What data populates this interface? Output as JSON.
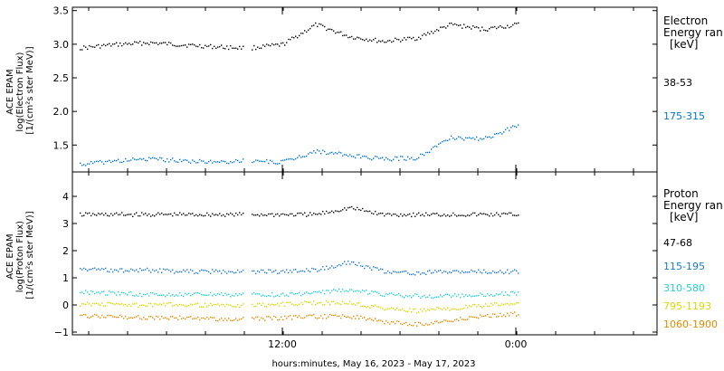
{
  "chart_data": [
    {
      "type": "scatter",
      "panel": "electron",
      "ylabel_lines": [
        "ACE EPAM",
        "log(Electron Flux)",
        "[1/(cm²s ster MeV)]"
      ],
      "ylim": [
        1.1,
        3.55
      ],
      "yticks": [
        1.5,
        2.0,
        2.5,
        3.0,
        3.5
      ],
      "ytick_labels": [
        "1.5",
        "2.0",
        "2.5",
        "3.0",
        "3.5"
      ],
      "legend_title_lines": [
        "Electron",
        "Energy ran",
        "[keV]"
      ],
      "series": [
        {
          "name": "38-53",
          "color": "#000000",
          "values": [
            2.95,
            3.0,
            3.03,
            3.0,
            2.97,
            2.95,
            3.0,
            3.3,
            3.12,
            3.05,
            3.1,
            3.3,
            3.23,
            3.3
          ]
        },
        {
          "name": "175-315",
          "color": "#0077cc",
          "values": [
            1.22,
            1.27,
            1.3,
            1.28,
            1.25,
            1.28,
            1.25,
            1.42,
            1.35,
            1.3,
            1.32,
            1.62,
            1.6,
            1.8
          ]
        }
      ]
    },
    {
      "type": "scatter",
      "panel": "proton",
      "ylabel_lines": [
        "ACE EPAM",
        "log(Proton Flux)",
        "[1/(cm²s ster MeV)]"
      ],
      "ylim": [
        -1.1,
        4.9
      ],
      "yticks": [
        -1,
        0,
        1,
        2,
        3,
        4
      ],
      "ytick_labels": [
        "−1",
        "0",
        "1",
        "2",
        "3",
        "4"
      ],
      "legend_title_lines": [
        "Proton",
        "Energy ran",
        "[keV]"
      ],
      "series": [
        {
          "name": "47-68",
          "color": "#000000",
          "values": [
            3.35,
            3.35,
            3.35,
            3.35,
            3.35,
            3.35,
            3.35,
            3.35,
            3.6,
            3.35,
            3.35,
            3.35,
            3.35,
            3.35
          ]
        },
        {
          "name": "115-195",
          "color": "#1a78c8",
          "values": [
            1.35,
            1.3,
            1.3,
            1.25,
            1.25,
            1.25,
            1.25,
            1.3,
            1.6,
            1.25,
            1.2,
            1.25,
            1.25,
            1.25
          ]
        },
        {
          "name": "310-580",
          "color": "#22d0d0",
          "values": [
            0.5,
            0.45,
            0.4,
            0.4,
            0.4,
            0.4,
            0.4,
            0.45,
            0.6,
            0.4,
            0.35,
            0.35,
            0.4,
            0.45
          ]
        },
        {
          "name": "795-1193",
          "color": "#d8d800",
          "values": [
            0.05,
            0.05,
            0.0,
            0.05,
            0.0,
            0.0,
            0.05,
            0.1,
            0.1,
            -0.1,
            -0.2,
            -0.1,
            0.0,
            0.1
          ]
        },
        {
          "name": "1060-1900",
          "color": "#e08a00",
          "values": [
            -0.4,
            -0.4,
            -0.45,
            -0.45,
            -0.5,
            -0.5,
            -0.45,
            -0.4,
            -0.4,
            -0.6,
            -0.7,
            -0.55,
            -0.4,
            -0.3
          ]
        }
      ]
    }
  ],
  "x_axis": {
    "label": "hours:minutes, May 16, 2023 - May 17, 2023",
    "tick_labels": [
      "12:00",
      "0:00"
    ]
  }
}
